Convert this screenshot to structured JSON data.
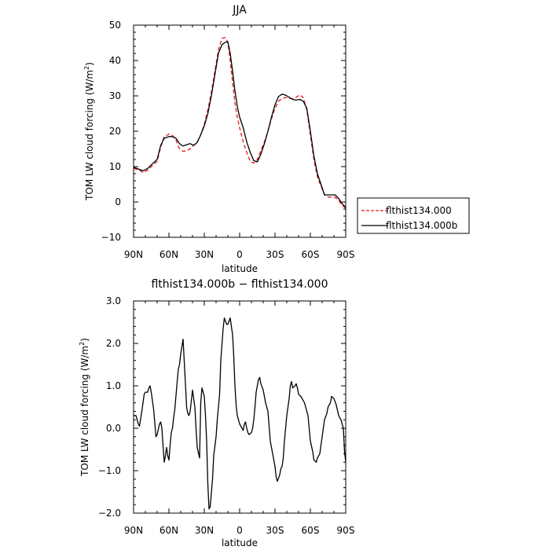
{
  "chart_data": [
    {
      "type": "line",
      "title": "JJA",
      "xlabel": "latitude",
      "ylabel": "TOM LW cloud forcing (W/m²)",
      "ylabel_main": "TOM LW cloud forcing (W/m",
      "ylabel_sup": "2",
      "ylabel_tail": ")",
      "xlim": [
        -90,
        90
      ],
      "ylim": [
        -10,
        50
      ],
      "xtick_values": [
        -90,
        -60,
        -30,
        0,
        30,
        60,
        90
      ],
      "xtick_labels": [
        "90N",
        "60N",
        "30N",
        "0",
        "30S",
        "60S",
        "90S"
      ],
      "ytick_values": [
        -10,
        0,
        10,
        20,
        30,
        40,
        50
      ],
      "ytick_labels": [
        "−10",
        "0",
        "10",
        "20",
        "30",
        "40",
        "50"
      ],
      "legend_position": "right",
      "series": [
        {
          "name": "flthist134.000",
          "color": "#e31a1c",
          "dash": "dashed",
          "x": [
            -90,
            -85,
            -82,
            -78,
            -75,
            -70,
            -67,
            -64,
            -60,
            -57,
            -54,
            -51,
            -48,
            -45,
            -42,
            -39,
            -36,
            -33,
            -30,
            -27,
            -24,
            -21,
            -18,
            -15,
            -12,
            -10,
            -8,
            -6,
            -4,
            -2,
            0,
            3,
            6,
            9,
            12,
            15,
            18,
            21,
            24,
            27,
            30,
            33,
            36,
            39,
            42,
            45,
            48,
            51,
            54,
            57,
            60,
            63,
            66,
            69,
            72,
            75,
            78,
            81,
            84,
            87,
            90
          ],
          "y": [
            9.5,
            9.0,
            8.3,
            9.0,
            10.0,
            11.5,
            15.5,
            18.5,
            19.2,
            18.8,
            17.5,
            15.0,
            14.3,
            14.5,
            15.0,
            16.0,
            17.0,
            19.0,
            22.0,
            26.0,
            31.0,
            37.0,
            43.0,
            46.3,
            46.5,
            45.0,
            40.0,
            34.0,
            28.0,
            24.0,
            21.0,
            17.0,
            14.0,
            11.5,
            11.0,
            12.0,
            14.5,
            17.0,
            20.0,
            23.5,
            26.5,
            28.5,
            29.3,
            29.5,
            29.3,
            29.2,
            29.6,
            30.3,
            29.5,
            26.0,
            19.0,
            12.0,
            7.0,
            4.5,
            2.0,
            1.4,
            1.3,
            1.3,
            0.5,
            -1.0,
            -1.8
          ]
        },
        {
          "name": "flthist134.000b",
          "color": "#000000",
          "dash": "solid",
          "x": [
            -90,
            -85,
            -82,
            -78,
            -75,
            -70,
            -67,
            -64,
            -60,
            -57,
            -54,
            -51,
            -48,
            -45,
            -42,
            -39,
            -36,
            -33,
            -30,
            -27,
            -24,
            -21,
            -18,
            -15,
            -12,
            -10,
            -8,
            -6,
            -4,
            -2,
            0,
            3,
            6,
            9,
            12,
            15,
            18,
            21,
            24,
            27,
            30,
            33,
            36,
            39,
            42,
            45,
            48,
            51,
            54,
            57,
            60,
            63,
            66,
            69,
            72,
            75,
            78,
            81,
            84,
            87,
            90
          ],
          "y": [
            9.8,
            9.2,
            8.8,
            9.5,
            10.5,
            12.0,
            16.0,
            18.0,
            18.5,
            18.5,
            18.0,
            16.5,
            15.8,
            16.2,
            16.5,
            16.0,
            16.8,
            19.0,
            21.5,
            25.0,
            30.0,
            36.0,
            42.0,
            44.5,
            45.2,
            45.3,
            42.0,
            37.0,
            31.5,
            27.0,
            24.0,
            21.0,
            17.0,
            14.0,
            11.7,
            11.3,
            13.5,
            16.5,
            20.0,
            24.0,
            27.5,
            29.8,
            30.5,
            30.2,
            29.6,
            29.0,
            28.8,
            29.0,
            28.5,
            26.5,
            20.0,
            13.0,
            8.0,
            5.0,
            2.0,
            2.0,
            2.0,
            2.0,
            1.0,
            -0.5,
            -1.5
          ]
        }
      ]
    },
    {
      "type": "line",
      "title": "flthist134.000b − flthist134.000",
      "xlabel": "latitude",
      "ylabel": "TOM LW cloud forcing (W/m²)",
      "ylabel_main": "TOM LW cloud forcing (W/m",
      "ylabel_sup": "2",
      "ylabel_tail": ")",
      "xlim": [
        -90,
        90
      ],
      "ylim": [
        -2.0,
        3.0
      ],
      "xtick_values": [
        -90,
        -60,
        -30,
        0,
        30,
        60,
        90
      ],
      "xtick_labels": [
        "90N",
        "60N",
        "30N",
        "0",
        "30S",
        "60S",
        "90S"
      ],
      "ytick_values": [
        -2,
        -1,
        0,
        1,
        2,
        3
      ],
      "ytick_labels": [
        "−2.0",
        "−1.0",
        "0.0",
        "1.0",
        "2.0",
        "3.0"
      ],
      "series": [
        {
          "color": "#000000",
          "dash": "solid",
          "x": [
            -90,
            -88,
            -86,
            -85,
            -83,
            -81,
            -80,
            -78,
            -77,
            -76,
            -75,
            -73,
            -71,
            -70,
            -68,
            -67,
            -66,
            -64,
            -63,
            -62,
            -61,
            -60,
            -59,
            -58,
            -57,
            -56,
            -55,
            -53,
            -52,
            -51,
            -50,
            -48,
            -46,
            -45,
            -44,
            -43,
            -42,
            -41,
            -40,
            -38,
            -37,
            -36,
            -34,
            -33,
            -32,
            -30,
            -29,
            -28,
            -27,
            -26,
            -25,
            -23,
            -22,
            -20,
            -19,
            -17,
            -16,
            -14,
            -13,
            -11,
            -10,
            -8,
            -6,
            -5,
            -4,
            -3,
            -2,
            0,
            2,
            3,
            4,
            5,
            6,
            7,
            8,
            10,
            11,
            12,
            13,
            14,
            16,
            17,
            18,
            20,
            21,
            22,
            24,
            25,
            26,
            28,
            30,
            31,
            32,
            34,
            35,
            36,
            37,
            38,
            39,
            40,
            42,
            43,
            44,
            45,
            47,
            48,
            49,
            50,
            52,
            54,
            55,
            56,
            58,
            59,
            60,
            62,
            63,
            65,
            66,
            68,
            69,
            70,
            71,
            72,
            74,
            75,
            77,
            78,
            80,
            82,
            84,
            86,
            88,
            89,
            90
          ],
          "y": [
            0.3,
            0.3,
            0.1,
            0.05,
            0.4,
            0.8,
            0.85,
            0.85,
            0.95,
            1.0,
            0.85,
            0.45,
            -0.2,
            -0.15,
            0.1,
            0.15,
            0.0,
            -0.8,
            -0.65,
            -0.45,
            -0.65,
            -0.75,
            -0.4,
            -0.1,
            0.0,
            0.25,
            0.45,
            1.1,
            1.4,
            1.5,
            1.75,
            2.1,
            1.05,
            0.5,
            0.35,
            0.3,
            0.4,
            0.65,
            0.9,
            0.5,
            0.0,
            -0.45,
            -0.7,
            0.6,
            0.95,
            0.75,
            0.3,
            -0.3,
            -1.3,
            -1.9,
            -1.85,
            -1.2,
            -0.65,
            -0.2,
            0.2,
            0.8,
            1.6,
            2.35,
            2.6,
            2.45,
            2.45,
            2.6,
            2.2,
            1.7,
            1.0,
            0.55,
            0.3,
            0.1,
            0.0,
            -0.05,
            0.1,
            0.15,
            0.0,
            -0.1,
            -0.15,
            -0.1,
            0.0,
            0.2,
            0.5,
            0.85,
            1.15,
            1.2,
            1.05,
            0.9,
            0.75,
            0.6,
            0.4,
            0.05,
            -0.3,
            -0.6,
            -0.9,
            -1.15,
            -1.25,
            -1.1,
            -0.95,
            -0.9,
            -0.7,
            -0.3,
            0.0,
            0.3,
            0.7,
            1.0,
            1.1,
            0.95,
            1.0,
            1.05,
            0.95,
            0.8,
            0.75,
            0.65,
            0.6,
            0.5,
            0.3,
            0.0,
            -0.3,
            -0.55,
            -0.75,
            -0.8,
            -0.7,
            -0.6,
            -0.4,
            -0.2,
            0.0,
            0.2,
            0.35,
            0.5,
            0.6,
            0.75,
            0.7,
            0.55,
            0.3,
            0.2,
            0.0,
            -0.55,
            -0.8
          ]
        }
      ]
    }
  ]
}
